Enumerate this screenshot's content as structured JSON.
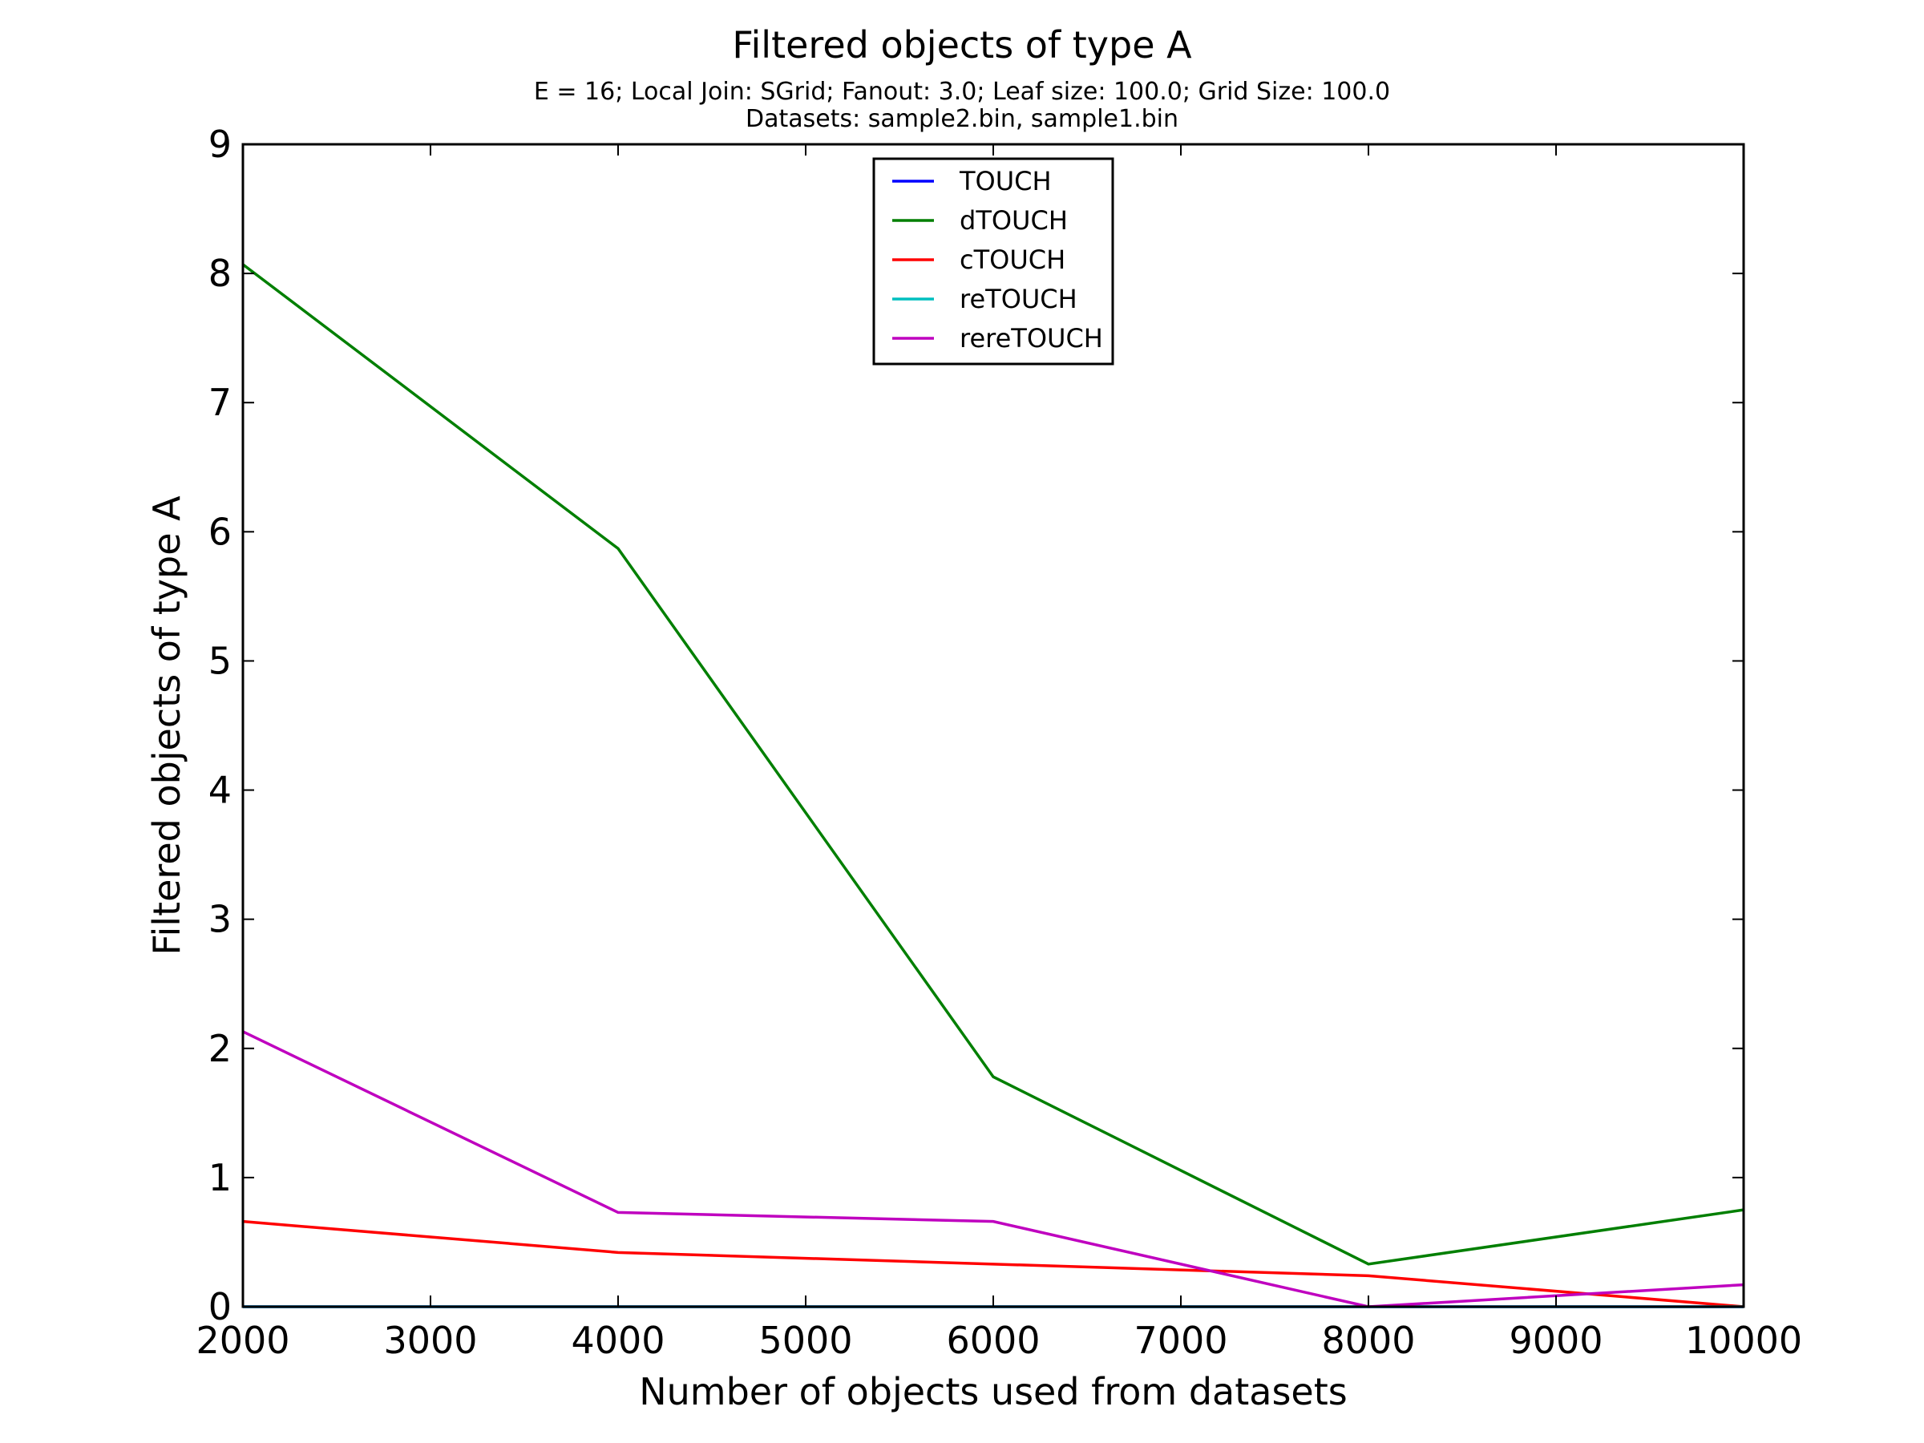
{
  "chart_data": {
    "type": "line",
    "title": "Filtered objects of type A",
    "subtitle_lines": [
      "E = 16; Local Join: SGrid; Fanout: 3.0; Leaf size: 100.0; Grid Size: 100.0",
      "Datasets: sample2.bin, sample1.bin"
    ],
    "xlabel": "Number of objects used from datasets",
    "ylabel": "Filtered objects of type A",
    "xlim": [
      2000,
      10000
    ],
    "ylim": [
      0,
      9
    ],
    "xticks": [
      2000,
      3000,
      4000,
      5000,
      6000,
      7000,
      8000,
      9000,
      10000
    ],
    "yticks": [
      0,
      1,
      2,
      3,
      4,
      5,
      6,
      7,
      8,
      9
    ],
    "grid": false,
    "legend_position": "top-center",
    "x": [
      2000,
      4000,
      6000,
      8000,
      10000
    ],
    "series": [
      {
        "name": "TOUCH",
        "color": "#0000ff",
        "values": [
          0,
          0,
          0,
          0,
          0
        ]
      },
      {
        "name": "dTOUCH",
        "color": "#007f00",
        "values": [
          8.07,
          5.87,
          1.78,
          0.33,
          0.75
        ]
      },
      {
        "name": "cTOUCH",
        "color": "#ff0000",
        "values": [
          0.66,
          0.42,
          0.33,
          0.24,
          0.0
        ]
      },
      {
        "name": "reTOUCH",
        "color": "#00bfbf",
        "values": [
          0,
          0,
          0,
          0,
          0
        ]
      },
      {
        "name": "rereTOUCH",
        "color": "#bf00bf",
        "values": [
          2.13,
          0.73,
          0.66,
          0.0,
          0.17
        ]
      }
    ]
  }
}
